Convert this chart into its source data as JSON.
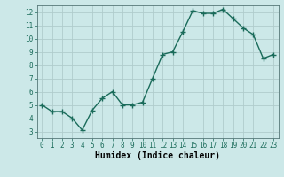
{
  "x": [
    0,
    1,
    2,
    3,
    4,
    5,
    6,
    7,
    8,
    9,
    10,
    11,
    12,
    13,
    14,
    15,
    16,
    17,
    18,
    19,
    20,
    21,
    22,
    23
  ],
  "y": [
    5.0,
    4.5,
    4.5,
    4.0,
    3.1,
    4.6,
    5.5,
    6.0,
    5.0,
    5.0,
    5.2,
    7.0,
    8.8,
    9.0,
    10.5,
    12.1,
    11.9,
    11.9,
    12.2,
    11.5,
    10.8,
    10.3,
    8.5,
    8.8
  ],
  "line_color": "#1a6b5a",
  "marker": "+",
  "marker_size": 4.0,
  "bg_color": "#cce8e8",
  "grid_color": "#b0cccc",
  "xlabel": "Humidex (Indice chaleur)",
  "xlim": [
    -0.5,
    23.5
  ],
  "ylim": [
    2.5,
    12.5
  ],
  "yticks": [
    3,
    4,
    5,
    6,
    7,
    8,
    9,
    10,
    11,
    12
  ],
  "xticks": [
    0,
    1,
    2,
    3,
    4,
    5,
    6,
    7,
    8,
    9,
    10,
    11,
    12,
    13,
    14,
    15,
    16,
    17,
    18,
    19,
    20,
    21,
    22,
    23
  ],
  "tick_label_fontsize": 5.5,
  "xlabel_fontsize": 7.0,
  "line_width": 1.0,
  "marker_linewidth": 1.0
}
